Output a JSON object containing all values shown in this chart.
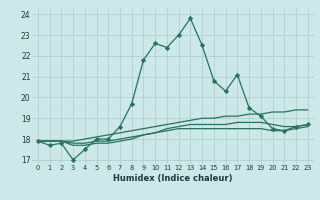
{
  "xlabel": "Humidex (Indice chaleur)",
  "x": [
    0,
    1,
    2,
    3,
    4,
    5,
    6,
    7,
    8,
    9,
    10,
    11,
    12,
    13,
    14,
    15,
    16,
    17,
    18,
    19,
    20,
    21,
    22,
    23
  ],
  "line1": [
    17.9,
    17.7,
    17.8,
    17.0,
    17.5,
    18.0,
    18.0,
    18.6,
    19.7,
    21.8,
    22.6,
    22.4,
    23.0,
    23.8,
    22.5,
    20.8,
    20.3,
    21.1,
    19.5,
    19.1,
    18.5,
    18.4,
    18.6,
    18.7
  ],
  "line2": [
    17.9,
    17.9,
    17.9,
    17.9,
    18.0,
    18.1,
    18.2,
    18.3,
    18.4,
    18.5,
    18.6,
    18.7,
    18.8,
    18.9,
    19.0,
    19.0,
    19.1,
    19.1,
    19.2,
    19.2,
    19.3,
    19.3,
    19.4,
    19.4
  ],
  "line3": [
    17.9,
    17.9,
    17.9,
    17.8,
    17.8,
    17.9,
    17.9,
    18.0,
    18.1,
    18.2,
    18.3,
    18.5,
    18.6,
    18.7,
    18.7,
    18.7,
    18.7,
    18.8,
    18.8,
    18.8,
    18.7,
    18.6,
    18.6,
    18.7
  ],
  "line4": [
    17.9,
    17.9,
    17.9,
    17.7,
    17.7,
    17.8,
    17.8,
    17.9,
    18.0,
    18.2,
    18.3,
    18.4,
    18.5,
    18.5,
    18.5,
    18.5,
    18.5,
    18.5,
    18.5,
    18.5,
    18.4,
    18.4,
    18.5,
    18.6
  ],
  "line_color_main": "#2a7060",
  "line_color_flat1": "#2a7060",
  "line_color_flat2": "#2a7060",
  "line_color_flat3": "#2a7060",
  "bg_color": "#cce8e8",
  "grid_color": "#aacccc",
  "ylim": [
    16.8,
    24.3
  ],
  "yticks": [
    17,
    18,
    19,
    20,
    21,
    22,
    23,
    24
  ],
  "xlim": [
    -0.5,
    23.5
  ],
  "xticks": [
    0,
    1,
    2,
    3,
    4,
    5,
    6,
    7,
    8,
    9,
    10,
    11,
    12,
    13,
    14,
    15,
    16,
    17,
    18,
    19,
    20,
    21,
    22,
    23
  ]
}
